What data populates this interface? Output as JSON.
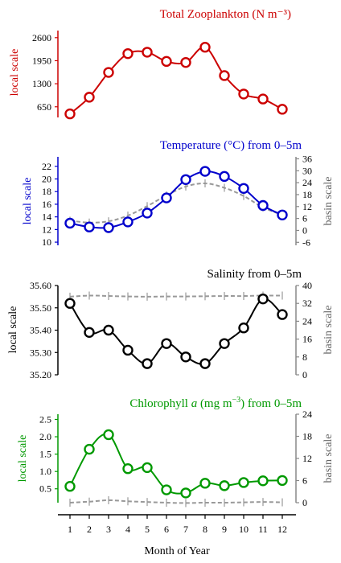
{
  "chart_data": [
    {
      "type": "line",
      "title": "Total Zooplankton (N m⁻³)",
      "color": "#cc0000",
      "ylabel": "local scale",
      "ylim": [
        350,
        2800
      ],
      "yticks": [
        650,
        1300,
        1950,
        2600
      ],
      "x": [
        1,
        2,
        3,
        4,
        5,
        6,
        7,
        8,
        9,
        10,
        11,
        12
      ],
      "series": [
        {
          "values": [
            450,
            920,
            1620,
            2150,
            2190,
            1930,
            1900,
            2330,
            1530,
            1010,
            870,
            580
          ]
        }
      ]
    },
    {
      "type": "line",
      "title": "Temperature (°C) from 0–5m",
      "color": "#0000cc",
      "ylabel": "local scale",
      "ylabel2": "basin scale",
      "ylim": [
        9.5,
        23.5
      ],
      "yticks": [
        10,
        12,
        14,
        16,
        18,
        20,
        22
      ],
      "y2lim": [
        -7.5,
        37
      ],
      "y2ticks": [
        -6,
        0,
        6,
        12,
        18,
        24,
        30,
        36
      ],
      "x": [
        1,
        2,
        3,
        4,
        5,
        6,
        7,
        8,
        9,
        10,
        11,
        12
      ],
      "series": [
        {
          "values": [
            13.0,
            12.4,
            12.3,
            13.2,
            14.6,
            17.0,
            19.9,
            21.2,
            20.4,
            18.5,
            15.8,
            14.3
          ]
        },
        {
          "values": [
            13.4,
            13.1,
            13.3,
            14.2,
            15.7,
            17.4,
            18.8,
            19.3,
            18.6,
            17.3,
            15.5,
            14.3
          ]
        }
      ]
    },
    {
      "type": "line",
      "title": "Salinity from 0–5m",
      "color": "#000000",
      "ylabel": "local scale",
      "ylabel2": "basin scale",
      "ylim": [
        35.2,
        35.6
      ],
      "yticks": [
        35.2,
        35.3,
        35.4,
        35.5,
        35.6
      ],
      "ytick_labels": [
        "35.20",
        "35.30",
        "35.40",
        "35.50",
        "35.60"
      ],
      "y2lim": [
        0,
        40
      ],
      "y2ticks": [
        0,
        8,
        16,
        24,
        32,
        40
      ],
      "x": [
        1,
        2,
        3,
        4,
        5,
        6,
        7,
        8,
        9,
        10,
        11,
        12
      ],
      "series": [
        {
          "values": [
            35.52,
            35.39,
            35.4,
            35.31,
            35.25,
            35.34,
            35.28,
            35.25,
            35.34,
            35.41,
            35.54,
            35.47
          ]
        },
        {
          "values": [
            35.55,
            35.555,
            35.553,
            35.551,
            35.55,
            35.551,
            35.551,
            35.552,
            35.553,
            35.553,
            35.555,
            35.555
          ]
        }
      ]
    },
    {
      "type": "line",
      "title": "Chlorophyll a (mg m⁻³) from 0–5m",
      "title_parts": [
        "Chlorophyll ",
        "a",
        " (mg m",
        "−3",
        ") from 0–5m"
      ],
      "color": "#009900",
      "ylabel": "local scale",
      "ylabel2": "basin scale",
      "ylim": [
        0.1,
        2.65
      ],
      "yticks": [
        0.5,
        1.0,
        1.5,
        2.0,
        2.5
      ],
      "ytick_labels": [
        "0.5",
        "1.0",
        "1.5",
        "2.0",
        "2.5"
      ],
      "y2lim": [
        0,
        24
      ],
      "y2ticks": [
        0,
        6,
        12,
        18,
        24
      ],
      "x": [
        1,
        2,
        3,
        4,
        5,
        6,
        7,
        8,
        9,
        10,
        11,
        12
      ],
      "xlabel": "Month of Year",
      "series": [
        {
          "values": [
            0.57,
            1.64,
            2.06,
            1.08,
            1.11,
            0.47,
            0.38,
            0.66,
            0.59,
            0.68,
            0.73,
            0.74
          ]
        },
        {
          "values": [
            0.1,
            0.13,
            0.17,
            0.14,
            0.12,
            0.1,
            0.09,
            0.1,
            0.1,
            0.11,
            0.12,
            0.11
          ]
        }
      ]
    }
  ]
}
